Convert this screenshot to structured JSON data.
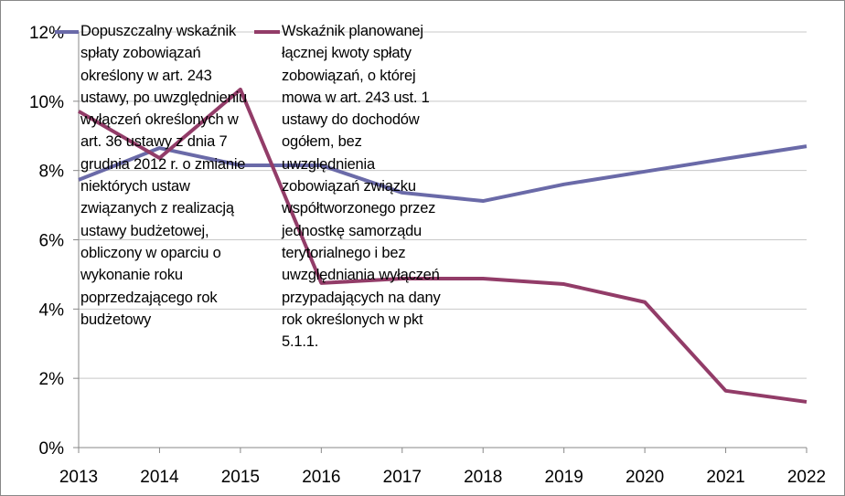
{
  "chart_data": {
    "type": "line",
    "x": [
      "2013",
      "2014",
      "2015",
      "2016",
      "2017",
      "2018",
      "2019",
      "2020",
      "2021",
      "2022"
    ],
    "series": [
      {
        "name": "Dopuszczalny wskaźnik spłaty zobowiązań określony w art. 243 ustawy, po uwzględnieniu wyłączeń określonych w art. 36 ustawy z dnia 7 grudnia 2012 r. o zmianie niektórych ustaw związanych z realizacją ustawy budżetowej, obliczony w oparciu o wykonanie roku poprzedzającego rok budżetowy",
        "color": "#6a6aa8",
        "values": [
          7.73,
          8.65,
          8.15,
          8.15,
          7.36,
          7.12,
          7.6,
          7.97,
          8.34,
          8.7
        ]
      },
      {
        "name": "Wskaźnik planowanej łącznej kwoty spłaty zobowiązań, o której mowa w art. 243 ust. 1 ustawy do dochodów ogółem, bez uwzględnienia zobowiązań związku współtworzonego przez jednostkę samorządu terytorialnego i bez uwzględniania wyłączeń przypadających na dany rok określonych w pkt 5.1.1.",
        "color": "#923c68",
        "values": [
          9.71,
          8.36,
          10.34,
          4.75,
          4.88,
          4.88,
          4.72,
          4.2,
          1.64,
          1.32
        ]
      }
    ],
    "ylim": [
      0,
      12
    ],
    "yticks": [
      {
        "value": 0,
        "label": "0%"
      },
      {
        "value": 2,
        "label": "2%"
      },
      {
        "value": 4,
        "label": "4%"
      },
      {
        "value": 6,
        "label": "6%"
      },
      {
        "value": 8,
        "label": "8%"
      },
      {
        "value": 10,
        "label": "10%"
      },
      {
        "value": 12,
        "label": "12%"
      }
    ],
    "grid": true,
    "legend": "top"
  }
}
